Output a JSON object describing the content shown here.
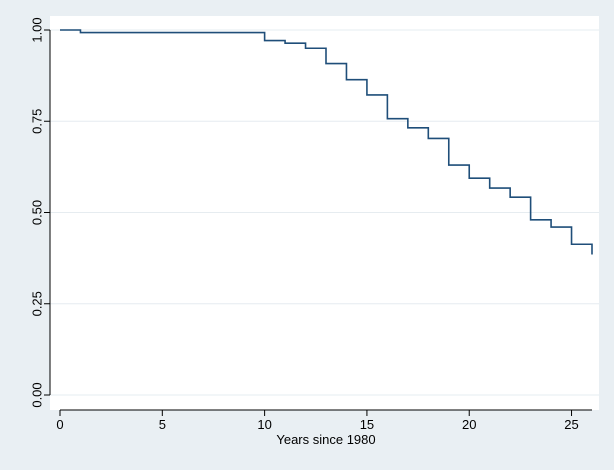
{
  "chart_data": {
    "type": "line",
    "step": true,
    "title": "",
    "xlabel": "Years since 1980",
    "ylabel": "",
    "xlim": [
      0,
      26
    ],
    "ylim": [
      0,
      1
    ],
    "x_ticks": [
      0,
      5,
      10,
      15,
      20,
      25
    ],
    "x_tick_labels": [
      "0",
      "5",
      "10",
      "15",
      "20",
      "25"
    ],
    "y_ticks": [
      0,
      0.25,
      0.5,
      0.75,
      1
    ],
    "y_tick_labels": [
      "0.00",
      "0.25",
      "0.50",
      "0.75",
      "1.00"
    ],
    "grid": "horizontal",
    "legend": "none",
    "colors": {
      "page_background": "#e9eff3",
      "plot_background": "#ffffff",
      "line": "#1f4e79",
      "grid": "#e6ecf0",
      "axis": "#000000"
    },
    "series": [
      {
        "x": [
          0,
          1,
          10,
          11,
          12,
          13,
          14,
          15,
          16,
          17,
          18,
          19,
          20,
          21,
          22,
          23,
          24,
          25,
          26
        ],
        "values": [
          1.0,
          0.993,
          0.971,
          0.964,
          0.95,
          0.908,
          0.864,
          0.822,
          0.757,
          0.732,
          0.703,
          0.63,
          0.594,
          0.567,
          0.542,
          0.48,
          0.46,
          0.413,
          0.385
        ]
      }
    ]
  }
}
